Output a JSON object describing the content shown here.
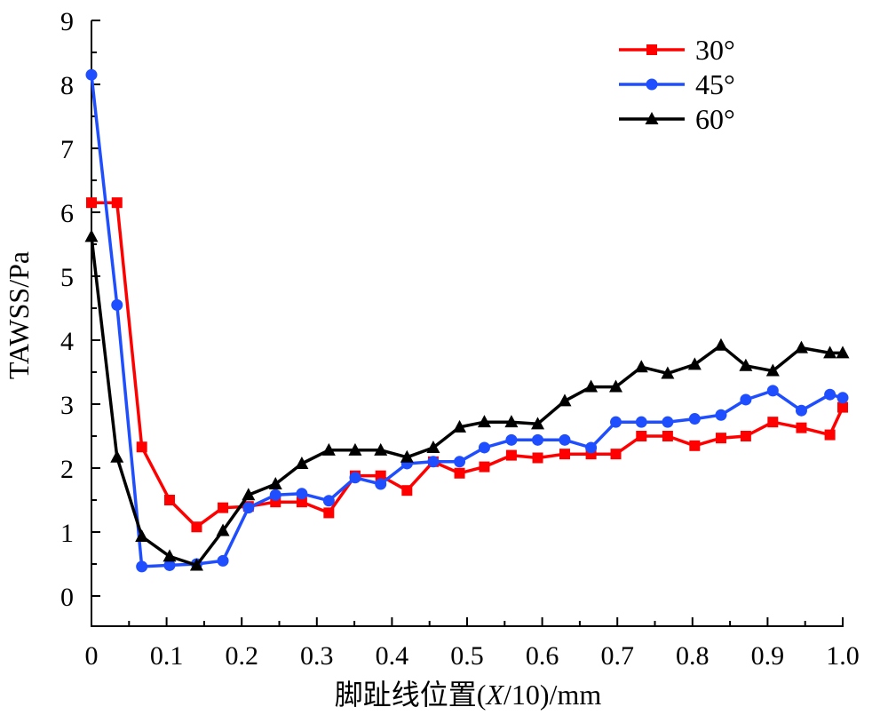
{
  "chart_data": {
    "type": "line",
    "title": "",
    "xlabel": "脚趾线位置(X/10)/mm",
    "xlabel_parts": {
      "prefix": "脚趾线位置(",
      "italic": "X",
      "suffix": "/10)/mm"
    },
    "ylabel": "TAWSS/Pa",
    "xlim": [
      0,
      1.0
    ],
    "ylim": [
      -0.45,
      9
    ],
    "xticks": [
      "0",
      "0.1",
      "0.2",
      "0.3",
      "0.4",
      "0.5",
      "0.6",
      "0.7",
      "0.8",
      "0.9",
      "1.0"
    ],
    "xtick_values": [
      0,
      0.1,
      0.2,
      0.3,
      0.4,
      0.5,
      0.6,
      0.7,
      0.8,
      0.9,
      1.0
    ],
    "yticks": [
      "0",
      "1",
      "2",
      "3",
      "4",
      "5",
      "6",
      "7",
      "8",
      "9"
    ],
    "ytick_values": [
      0,
      1,
      2,
      3,
      4,
      5,
      6,
      7,
      8,
      9
    ],
    "grid": false,
    "legend_position": "top-right",
    "x": [
      0,
      0.034,
      0.067,
      0.104,
      0.14,
      0.175,
      0.209,
      0.245,
      0.28,
      0.316,
      0.351,
      0.385,
      0.42,
      0.455,
      0.49,
      0.523,
      0.559,
      0.594,
      0.63,
      0.665,
      0.698,
      0.732,
      0.767,
      0.803,
      0.838,
      0.871,
      0.907,
      0.945,
      0.983,
      1.0
    ],
    "series": [
      {
        "name": "30°",
        "color": "#ff0000",
        "marker": "square",
        "values": [
          6.15,
          6.15,
          2.33,
          1.5,
          1.08,
          1.38,
          1.4,
          1.47,
          1.47,
          1.3,
          1.88,
          1.88,
          1.65,
          2.1,
          1.92,
          2.02,
          2.2,
          2.16,
          2.22,
          2.22,
          2.22,
          2.5,
          2.5,
          2.35,
          2.47,
          2.5,
          2.72,
          2.63,
          2.52,
          2.95
        ]
      },
      {
        "name": "45°",
        "color": "#1f4eff",
        "marker": "circle",
        "values": [
          8.15,
          4.55,
          0.46,
          0.48,
          0.5,
          0.55,
          1.38,
          1.58,
          1.6,
          1.49,
          1.85,
          1.75,
          2.07,
          2.1,
          2.1,
          2.32,
          2.44,
          2.44,
          2.44,
          2.32,
          2.72,
          2.72,
          2.72,
          2.77,
          2.83,
          3.07,
          3.21,
          2.9,
          3.15,
          3.1
        ]
      },
      {
        "name": "60°",
        "color": "#000000",
        "marker": "triangle",
        "values": [
          5.62,
          2.17,
          0.93,
          0.62,
          0.48,
          1.02,
          1.58,
          1.75,
          2.07,
          2.28,
          2.28,
          2.28,
          2.17,
          2.32,
          2.64,
          2.72,
          2.72,
          2.69,
          3.05,
          3.27,
          3.27,
          3.58,
          3.48,
          3.62,
          3.92,
          3.6,
          3.52,
          3.88,
          3.8,
          3.8
        ]
      }
    ]
  }
}
